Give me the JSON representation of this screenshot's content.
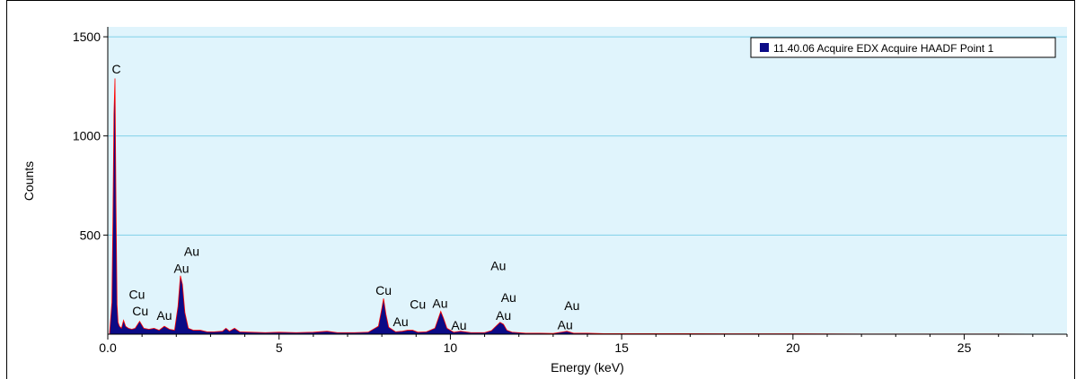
{
  "chart_data": {
    "type": "area",
    "xlabel": "Energy (keV)",
    "ylabel": "Counts",
    "xlim": [
      0,
      28
    ],
    "ylim": [
      0,
      1550
    ],
    "x_ticks": [
      "0.0",
      "5",
      "10",
      "15",
      "20",
      "25"
    ],
    "x_tick_values": [
      0,
      5,
      10,
      15,
      20,
      25
    ],
    "y_ticks": [
      "500",
      "1000",
      "1500"
    ],
    "y_tick_values": [
      500,
      1000,
      1500
    ],
    "grid": "horizontal",
    "legend_position": "top-right",
    "colors": {
      "plot_bg": "#e0f4fc",
      "grid": "#7fd0e8",
      "fill": "#0b0b86",
      "line": "#ff0000"
    },
    "series": [
      {
        "name": "11.40.06 Acquire EDX Acquire HAADF Point 1",
        "color": "#0b0b86",
        "points": [
          [
            0.05,
            0
          ],
          [
            0.12,
            160
          ],
          [
            0.15,
            570
          ],
          [
            0.18,
            1110
          ],
          [
            0.21,
            1290
          ],
          [
            0.24,
            650
          ],
          [
            0.27,
            150
          ],
          [
            0.3,
            60
          ],
          [
            0.34,
            40
          ],
          [
            0.4,
            30
          ],
          [
            0.46,
            70
          ],
          [
            0.52,
            40
          ],
          [
            0.6,
            30
          ],
          [
            0.7,
            25
          ],
          [
            0.8,
            30
          ],
          [
            0.93,
            65
          ],
          [
            1.05,
            30
          ],
          [
            1.2,
            25
          ],
          [
            1.35,
            30
          ],
          [
            1.5,
            20
          ],
          [
            1.65,
            40
          ],
          [
            1.8,
            25
          ],
          [
            1.95,
            20
          ],
          [
            2.05,
            140
          ],
          [
            2.12,
            295
          ],
          [
            2.18,
            250
          ],
          [
            2.25,
            110
          ],
          [
            2.35,
            30
          ],
          [
            2.5,
            20
          ],
          [
            2.7,
            20
          ],
          [
            2.9,
            12
          ],
          [
            3.1,
            12
          ],
          [
            3.35,
            15
          ],
          [
            3.45,
            30
          ],
          [
            3.55,
            15
          ],
          [
            3.7,
            30
          ],
          [
            3.85,
            12
          ],
          [
            4.2,
            10
          ],
          [
            4.6,
            8
          ],
          [
            5.0,
            10
          ],
          [
            5.5,
            8
          ],
          [
            6.0,
            10
          ],
          [
            6.4,
            15
          ],
          [
            6.7,
            8
          ],
          [
            7.2,
            8
          ],
          [
            7.6,
            10
          ],
          [
            7.9,
            40
          ],
          [
            8.0,
            130
          ],
          [
            8.05,
            180
          ],
          [
            8.12,
            100
          ],
          [
            8.2,
            35
          ],
          [
            8.4,
            12
          ],
          [
            8.6,
            15
          ],
          [
            8.75,
            20
          ],
          [
            8.9,
            20
          ],
          [
            9.05,
            10
          ],
          [
            9.3,
            12
          ],
          [
            9.55,
            30
          ],
          [
            9.65,
            80
          ],
          [
            9.72,
            115
          ],
          [
            9.8,
            80
          ],
          [
            9.9,
            30
          ],
          [
            10.1,
            10
          ],
          [
            10.3,
            15
          ],
          [
            10.6,
            8
          ],
          [
            11.0,
            8
          ],
          [
            11.2,
            18
          ],
          [
            11.3,
            35
          ],
          [
            11.45,
            60
          ],
          [
            11.55,
            50
          ],
          [
            11.65,
            20
          ],
          [
            11.8,
            10
          ],
          [
            12.2,
            5
          ],
          [
            12.6,
            5
          ],
          [
            13.0,
            4
          ],
          [
            13.3,
            12
          ],
          [
            13.4,
            15
          ],
          [
            13.6,
            5
          ],
          [
            14.0,
            5
          ],
          [
            14.5,
            3
          ],
          [
            16.0,
            3
          ],
          [
            18.0,
            2
          ],
          [
            20.0,
            2
          ],
          [
            22.0,
            1
          ],
          [
            24.0,
            1
          ],
          [
            26.0,
            1
          ],
          [
            28.0,
            0
          ]
        ]
      }
    ],
    "peak_labels": [
      {
        "text": "C",
        "x": 0.25,
        "y": 1315
      },
      {
        "text": "Cu",
        "x": 0.85,
        "y": 178
      },
      {
        "text": "Cu",
        "x": 0.95,
        "y": 95
      },
      {
        "text": "Au",
        "x": 1.65,
        "y": 72
      },
      {
        "text": "Au",
        "x": 2.15,
        "y": 310
      },
      {
        "text": "Au",
        "x": 2.45,
        "y": 395
      },
      {
        "text": "Cu",
        "x": 8.05,
        "y": 198
      },
      {
        "text": "Au",
        "x": 8.55,
        "y": 40
      },
      {
        "text": "Cu",
        "x": 9.05,
        "y": 128
      },
      {
        "text": "Au",
        "x": 9.7,
        "y": 133
      },
      {
        "text": "Au",
        "x": 10.25,
        "y": 22
      },
      {
        "text": "Au",
        "x": 11.4,
        "y": 322
      },
      {
        "text": "Au",
        "x": 11.7,
        "y": 163
      },
      {
        "text": "Au",
        "x": 11.55,
        "y": 72
      },
      {
        "text": "Au",
        "x": 13.55,
        "y": 122
      },
      {
        "text": "Au",
        "x": 13.35,
        "y": 25
      }
    ]
  }
}
